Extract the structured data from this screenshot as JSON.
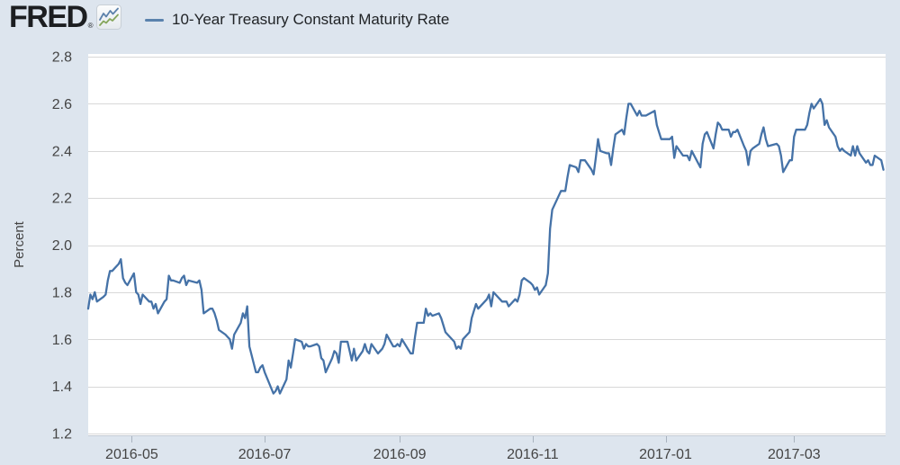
{
  "header": {
    "logo_text": "FRED",
    "logo_registered": "®"
  },
  "colors": {
    "page_bg": "#dde5ee",
    "plot_bg": "#ffffff",
    "gridline": "#d8d8d8",
    "axis_line": "#c4cbd4",
    "tick_mark": "#a9b3bf",
    "axis_text": "#444444",
    "line": "#4572a7",
    "legend_swatch": "#5a82ad"
  },
  "chart_data": {
    "type": "line",
    "title": "10-Year Treasury Constant Maturity Rate",
    "ylabel": "Percent",
    "xlabel": "",
    "ylim": [
      1.2,
      2.8
    ],
    "yticks": [
      2.8,
      2.6,
      2.4,
      2.2,
      2.0,
      1.8,
      1.6,
      1.4,
      1.2
    ],
    "grid": "horizontal",
    "legend_position": "top-left",
    "xlim": [
      "2016-04-11",
      "2017-04-12"
    ],
    "xticks": [
      {
        "label": "2016-05",
        "date": "2016-05-01"
      },
      {
        "label": "2016-07",
        "date": "2016-07-01"
      },
      {
        "label": "2016-09",
        "date": "2016-09-01"
      },
      {
        "label": "2016-11",
        "date": "2016-11-01"
      },
      {
        "label": "2017-01",
        "date": "2017-01-01"
      },
      {
        "label": "2017-03",
        "date": "2017-03-01"
      }
    ],
    "series": [
      {
        "name": "10-Year Treasury Constant Maturity Rate",
        "color": "#4572a7",
        "units": "Percent",
        "frequency": "daily",
        "dates": [
          "2016-04-11",
          "2016-04-12",
          "2016-04-13",
          "2016-04-14",
          "2016-04-15",
          "2016-04-18",
          "2016-04-19",
          "2016-04-20",
          "2016-04-21",
          "2016-04-22",
          "2016-04-25",
          "2016-04-26",
          "2016-04-27",
          "2016-04-28",
          "2016-04-29",
          "2016-05-02",
          "2016-05-03",
          "2016-05-04",
          "2016-05-05",
          "2016-05-06",
          "2016-05-09",
          "2016-05-10",
          "2016-05-11",
          "2016-05-12",
          "2016-05-13",
          "2016-05-16",
          "2016-05-17",
          "2016-05-18",
          "2016-05-19",
          "2016-05-20",
          "2016-05-23",
          "2016-05-24",
          "2016-05-25",
          "2016-05-26",
          "2016-05-27",
          "2016-05-31",
          "2016-06-01",
          "2016-06-02",
          "2016-06-03",
          "2016-06-06",
          "2016-06-07",
          "2016-06-08",
          "2016-06-09",
          "2016-06-10",
          "2016-06-13",
          "2016-06-14",
          "2016-06-15",
          "2016-06-16",
          "2016-06-17",
          "2016-06-20",
          "2016-06-21",
          "2016-06-22",
          "2016-06-23",
          "2016-06-24",
          "2016-06-27",
          "2016-06-28",
          "2016-06-29",
          "2016-06-30",
          "2016-07-01",
          "2016-07-05",
          "2016-07-06",
          "2016-07-07",
          "2016-07-08",
          "2016-07-11",
          "2016-07-12",
          "2016-07-13",
          "2016-07-14",
          "2016-07-15",
          "2016-07-18",
          "2016-07-19",
          "2016-07-20",
          "2016-07-21",
          "2016-07-22",
          "2016-07-25",
          "2016-07-26",
          "2016-07-27",
          "2016-07-28",
          "2016-07-29",
          "2016-08-01",
          "2016-08-02",
          "2016-08-03",
          "2016-08-04",
          "2016-08-05",
          "2016-08-08",
          "2016-08-09",
          "2016-08-10",
          "2016-08-11",
          "2016-08-12",
          "2016-08-15",
          "2016-08-16",
          "2016-08-17",
          "2016-08-18",
          "2016-08-19",
          "2016-08-22",
          "2016-08-23",
          "2016-08-24",
          "2016-08-25",
          "2016-08-26",
          "2016-08-29",
          "2016-08-30",
          "2016-08-31",
          "2016-09-01",
          "2016-09-02",
          "2016-09-06",
          "2016-09-07",
          "2016-09-08",
          "2016-09-09",
          "2016-09-12",
          "2016-09-13",
          "2016-09-14",
          "2016-09-15",
          "2016-09-16",
          "2016-09-19",
          "2016-09-20",
          "2016-09-21",
          "2016-09-22",
          "2016-09-23",
          "2016-09-26",
          "2016-09-27",
          "2016-09-28",
          "2016-09-29",
          "2016-09-30",
          "2016-10-03",
          "2016-10-04",
          "2016-10-05",
          "2016-10-06",
          "2016-10-07",
          "2016-10-11",
          "2016-10-12",
          "2016-10-13",
          "2016-10-14",
          "2016-10-17",
          "2016-10-18",
          "2016-10-19",
          "2016-10-20",
          "2016-10-21",
          "2016-10-24",
          "2016-10-25",
          "2016-10-26",
          "2016-10-27",
          "2016-10-28",
          "2016-10-31",
          "2016-11-01",
          "2016-11-02",
          "2016-11-03",
          "2016-11-04",
          "2016-11-07",
          "2016-11-08",
          "2016-11-09",
          "2016-11-10",
          "2016-11-14",
          "2016-11-15",
          "2016-11-16",
          "2016-11-17",
          "2016-11-18",
          "2016-11-21",
          "2016-11-22",
          "2016-11-23",
          "2016-11-25",
          "2016-11-28",
          "2016-11-29",
          "2016-11-30",
          "2016-12-01",
          "2016-12-02",
          "2016-12-05",
          "2016-12-06",
          "2016-12-07",
          "2016-12-08",
          "2016-12-09",
          "2016-12-12",
          "2016-12-13",
          "2016-12-14",
          "2016-12-15",
          "2016-12-16",
          "2016-12-19",
          "2016-12-20",
          "2016-12-21",
          "2016-12-22",
          "2016-12-23",
          "2016-12-27",
          "2016-12-28",
          "2016-12-29",
          "2016-12-30",
          "2017-01-03",
          "2017-01-04",
          "2017-01-05",
          "2017-01-06",
          "2017-01-09",
          "2017-01-10",
          "2017-01-11",
          "2017-01-12",
          "2017-01-13",
          "2017-01-17",
          "2017-01-18",
          "2017-01-19",
          "2017-01-20",
          "2017-01-23",
          "2017-01-24",
          "2017-01-25",
          "2017-01-26",
          "2017-01-27",
          "2017-01-30",
          "2017-01-31",
          "2017-02-01",
          "2017-02-02",
          "2017-02-03",
          "2017-02-06",
          "2017-02-07",
          "2017-02-08",
          "2017-02-09",
          "2017-02-10",
          "2017-02-13",
          "2017-02-14",
          "2017-02-15",
          "2017-02-16",
          "2017-02-17",
          "2017-02-21",
          "2017-02-22",
          "2017-02-23",
          "2017-02-24",
          "2017-02-27",
          "2017-02-28",
          "2017-03-01",
          "2017-03-02",
          "2017-03-03",
          "2017-03-06",
          "2017-03-07",
          "2017-03-08",
          "2017-03-09",
          "2017-03-10",
          "2017-03-13",
          "2017-03-14",
          "2017-03-15",
          "2017-03-16",
          "2017-03-17",
          "2017-03-20",
          "2017-03-21",
          "2017-03-22",
          "2017-03-23",
          "2017-03-24",
          "2017-03-27",
          "2017-03-28",
          "2017-03-29",
          "2017-03-30",
          "2017-03-31",
          "2017-04-03",
          "2017-04-04",
          "2017-04-05",
          "2017-04-06",
          "2017-04-07",
          "2017-04-10",
          "2017-04-11"
        ],
        "values": [
          1.73,
          1.79,
          1.77,
          1.8,
          1.76,
          1.78,
          1.79,
          1.85,
          1.89,
          1.89,
          1.92,
          1.94,
          1.86,
          1.84,
          1.83,
          1.88,
          1.8,
          1.79,
          1.75,
          1.79,
          1.76,
          1.76,
          1.73,
          1.75,
          1.71,
          1.76,
          1.77,
          1.87,
          1.85,
          1.85,
          1.84,
          1.86,
          1.87,
          1.83,
          1.85,
          1.84,
          1.85,
          1.81,
          1.71,
          1.73,
          1.73,
          1.71,
          1.68,
          1.64,
          1.62,
          1.61,
          1.6,
          1.56,
          1.62,
          1.67,
          1.71,
          1.69,
          1.74,
          1.57,
          1.46,
          1.46,
          1.48,
          1.49,
          1.46,
          1.37,
          1.38,
          1.4,
          1.37,
          1.43,
          1.51,
          1.48,
          1.54,
          1.6,
          1.59,
          1.56,
          1.58,
          1.57,
          1.57,
          1.58,
          1.57,
          1.52,
          1.51,
          1.46,
          1.52,
          1.55,
          1.54,
          1.5,
          1.59,
          1.59,
          1.55,
          1.51,
          1.56,
          1.51,
          1.55,
          1.58,
          1.55,
          1.54,
          1.58,
          1.54,
          1.55,
          1.56,
          1.58,
          1.62,
          1.57,
          1.57,
          1.58,
          1.57,
          1.6,
          1.54,
          1.54,
          1.61,
          1.67,
          1.67,
          1.73,
          1.7,
          1.71,
          1.7,
          1.71,
          1.69,
          1.66,
          1.63,
          1.62,
          1.59,
          1.56,
          1.57,
          1.56,
          1.6,
          1.63,
          1.69,
          1.72,
          1.75,
          1.73,
          1.77,
          1.79,
          1.74,
          1.8,
          1.77,
          1.76,
          1.76,
          1.76,
          1.74,
          1.77,
          1.76,
          1.79,
          1.85,
          1.86,
          1.84,
          1.83,
          1.81,
          1.82,
          1.79,
          1.83,
          1.88,
          2.07,
          2.15,
          2.23,
          2.23,
          2.23,
          2.29,
          2.34,
          2.33,
          2.31,
          2.36,
          2.36,
          2.32,
          2.3,
          2.37,
          2.45,
          2.4,
          2.39,
          2.39,
          2.34,
          2.41,
          2.47,
          2.49,
          2.47,
          2.54,
          2.6,
          2.6,
          2.55,
          2.57,
          2.55,
          2.55,
          2.55,
          2.57,
          2.51,
          2.48,
          2.45,
          2.45,
          2.46,
          2.37,
          2.42,
          2.38,
          2.38,
          2.38,
          2.36,
          2.4,
          2.33,
          2.43,
          2.47,
          2.48,
          2.41,
          2.47,
          2.52,
          2.51,
          2.49,
          2.49,
          2.46,
          2.48,
          2.48,
          2.49,
          2.42,
          2.4,
          2.34,
          2.4,
          2.41,
          2.43,
          2.47,
          2.5,
          2.45,
          2.42,
          2.43,
          2.42,
          2.38,
          2.31,
          2.36,
          2.36,
          2.46,
          2.49,
          2.49,
          2.49,
          2.51,
          2.56,
          2.6,
          2.58,
          2.62,
          2.6,
          2.51,
          2.53,
          2.5,
          2.46,
          2.42,
          2.4,
          2.41,
          2.4,
          2.38,
          2.42,
          2.38,
          2.42,
          2.39,
          2.35,
          2.36,
          2.34,
          2.34,
          2.38,
          2.36,
          2.32
        ]
      }
    ]
  }
}
